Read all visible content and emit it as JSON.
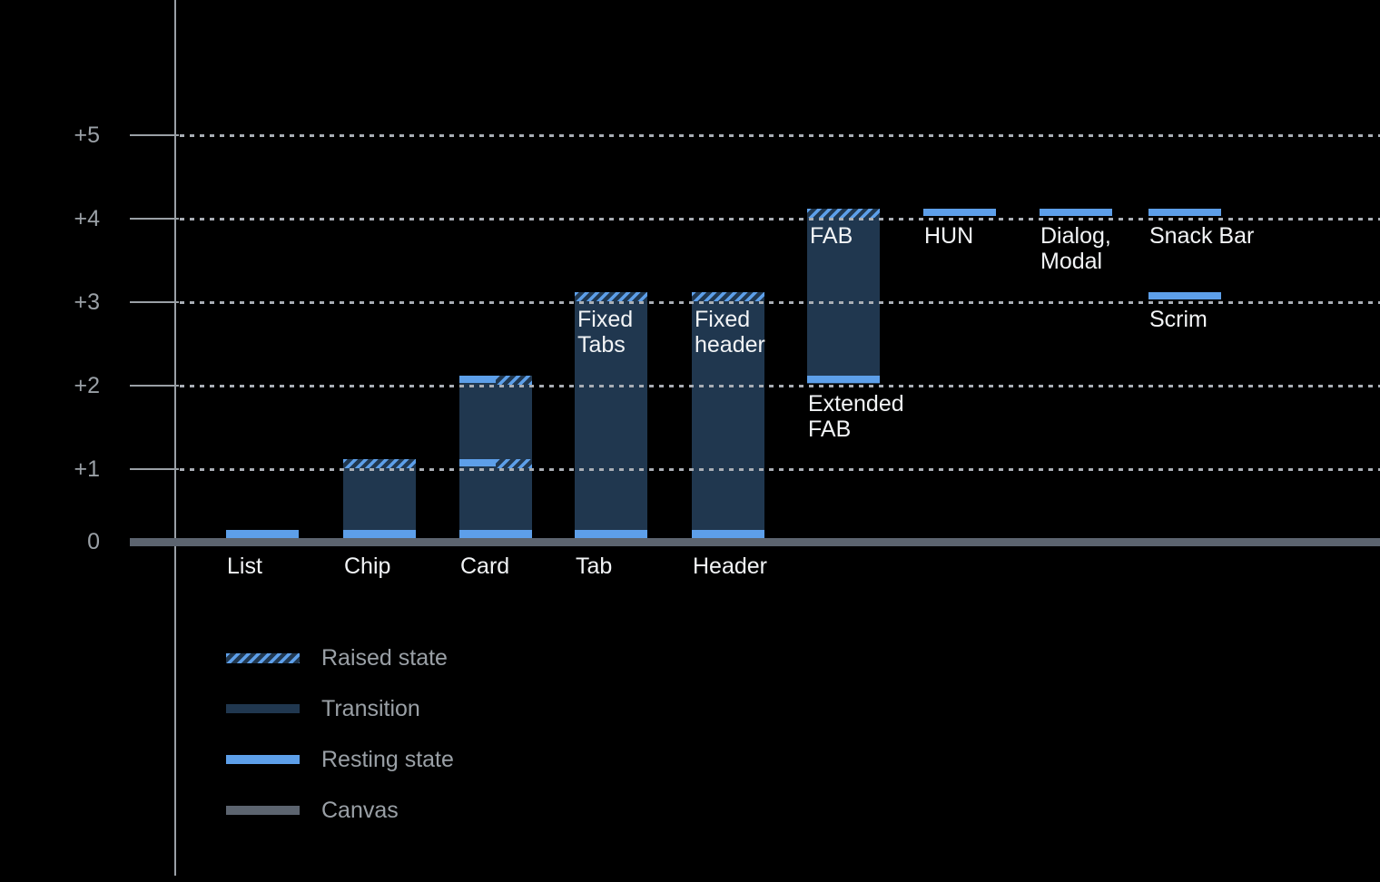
{
  "chart_data": {
    "type": "bar",
    "title": "",
    "y_axis": {
      "ticks": [
        {
          "label": "+5",
          "value": 5
        },
        {
          "label": "+4",
          "value": 4
        },
        {
          "label": "+3",
          "value": 3
        },
        {
          "label": "+2",
          "value": 2
        },
        {
          "label": "+1",
          "value": 1
        },
        {
          "label": "0",
          "value": 0
        }
      ],
      "gridline_values": [
        5,
        4,
        3,
        2,
        1
      ],
      "range": [
        0,
        5
      ],
      "grid": "dotted"
    },
    "legend": {
      "position": "bottom-left",
      "items": [
        {
          "key": "raised",
          "label": "Raised state"
        },
        {
          "key": "transition",
          "label": "Transition"
        },
        {
          "key": "resting",
          "label": "Resting state"
        },
        {
          "key": "canvas",
          "label": "Canvas"
        }
      ]
    },
    "colors": {
      "background": "#000000",
      "resting": "#5D9FE9",
      "transition": "#20374F",
      "canvas": "#5C646F",
      "axis": "#9AA0A6",
      "gridline": "#A9AEB5",
      "label": "#F2F4F6"
    },
    "bars": [
      {
        "name": "list",
        "col": 0,
        "segments": [
          {
            "kind": "resting",
            "at": 0
          }
        ],
        "labels": [
          {
            "lines": [
              "List"
            ],
            "placement": "baseline"
          }
        ]
      },
      {
        "name": "chip",
        "col": 1,
        "segments": [
          {
            "kind": "transition",
            "from": 0,
            "to": 1
          },
          {
            "kind": "raised",
            "at": 1
          },
          {
            "kind": "resting",
            "at": 0
          }
        ],
        "labels": [
          {
            "lines": [
              "Chip"
            ],
            "placement": "baseline"
          }
        ]
      },
      {
        "name": "card",
        "col": 2,
        "segments": [
          {
            "kind": "transition",
            "from": 0,
            "to": 2
          },
          {
            "kind": "resting",
            "at": 2,
            "span": "left"
          },
          {
            "kind": "raised",
            "at": 2,
            "span": "right"
          },
          {
            "kind": "resting",
            "at": 1,
            "span": "left"
          },
          {
            "kind": "raised",
            "at": 1,
            "span": "right"
          },
          {
            "kind": "resting",
            "at": 0
          }
        ],
        "labels": [
          {
            "lines": [
              "Card"
            ],
            "placement": "baseline"
          }
        ]
      },
      {
        "name": "tab",
        "col": 3,
        "segments": [
          {
            "kind": "transition",
            "from": 0,
            "to": 3
          },
          {
            "kind": "raised",
            "at": 3
          },
          {
            "kind": "resting",
            "at": 0
          }
        ],
        "labels": [
          {
            "lines": [
              "Tab"
            ],
            "placement": "baseline"
          },
          {
            "lines": [
              "Fixed",
              "Tabs"
            ],
            "placement": "inside-top"
          }
        ]
      },
      {
        "name": "header",
        "col": 4,
        "segments": [
          {
            "kind": "transition",
            "from": 0,
            "to": 3
          },
          {
            "kind": "raised",
            "at": 3
          },
          {
            "kind": "resting",
            "at": 0
          }
        ],
        "labels": [
          {
            "lines": [
              "Header"
            ],
            "placement": "baseline"
          },
          {
            "lines": [
              "Fixed",
              "header"
            ],
            "placement": "inside-top"
          }
        ]
      },
      {
        "name": "fab",
        "col": 5,
        "segments": [
          {
            "kind": "transition",
            "from": 2,
            "to": 4
          },
          {
            "kind": "raised",
            "at": 4
          },
          {
            "kind": "resting",
            "at": 2,
            "align": "bar-bottom"
          }
        ],
        "labels": [
          {
            "lines": [
              "FAB"
            ],
            "placement": "inside-top"
          },
          {
            "lines": [
              "Extended",
              "FAB"
            ],
            "placement": "below"
          }
        ]
      },
      {
        "name": "hun",
        "col": 6,
        "segments": [
          {
            "kind": "resting",
            "at": 4
          }
        ],
        "labels": [
          {
            "lines": [
              "HUN"
            ],
            "placement": "below"
          }
        ]
      },
      {
        "name": "dialog-modal",
        "col": 7,
        "segments": [
          {
            "kind": "resting",
            "at": 4
          }
        ],
        "labels": [
          {
            "lines": [
              "Dialog,",
              "Modal"
            ],
            "placement": "below"
          }
        ]
      },
      {
        "name": "snack-bar",
        "col": 8,
        "segments": [
          {
            "kind": "resting",
            "at": 4
          }
        ],
        "labels": [
          {
            "lines": [
              "Snack Bar"
            ],
            "placement": "below"
          }
        ]
      },
      {
        "name": "scrim",
        "col": 8,
        "segments": [
          {
            "kind": "resting",
            "at": 3
          }
        ],
        "labels": [
          {
            "lines": [
              "Scrim"
            ],
            "placement": "below"
          }
        ]
      }
    ]
  }
}
